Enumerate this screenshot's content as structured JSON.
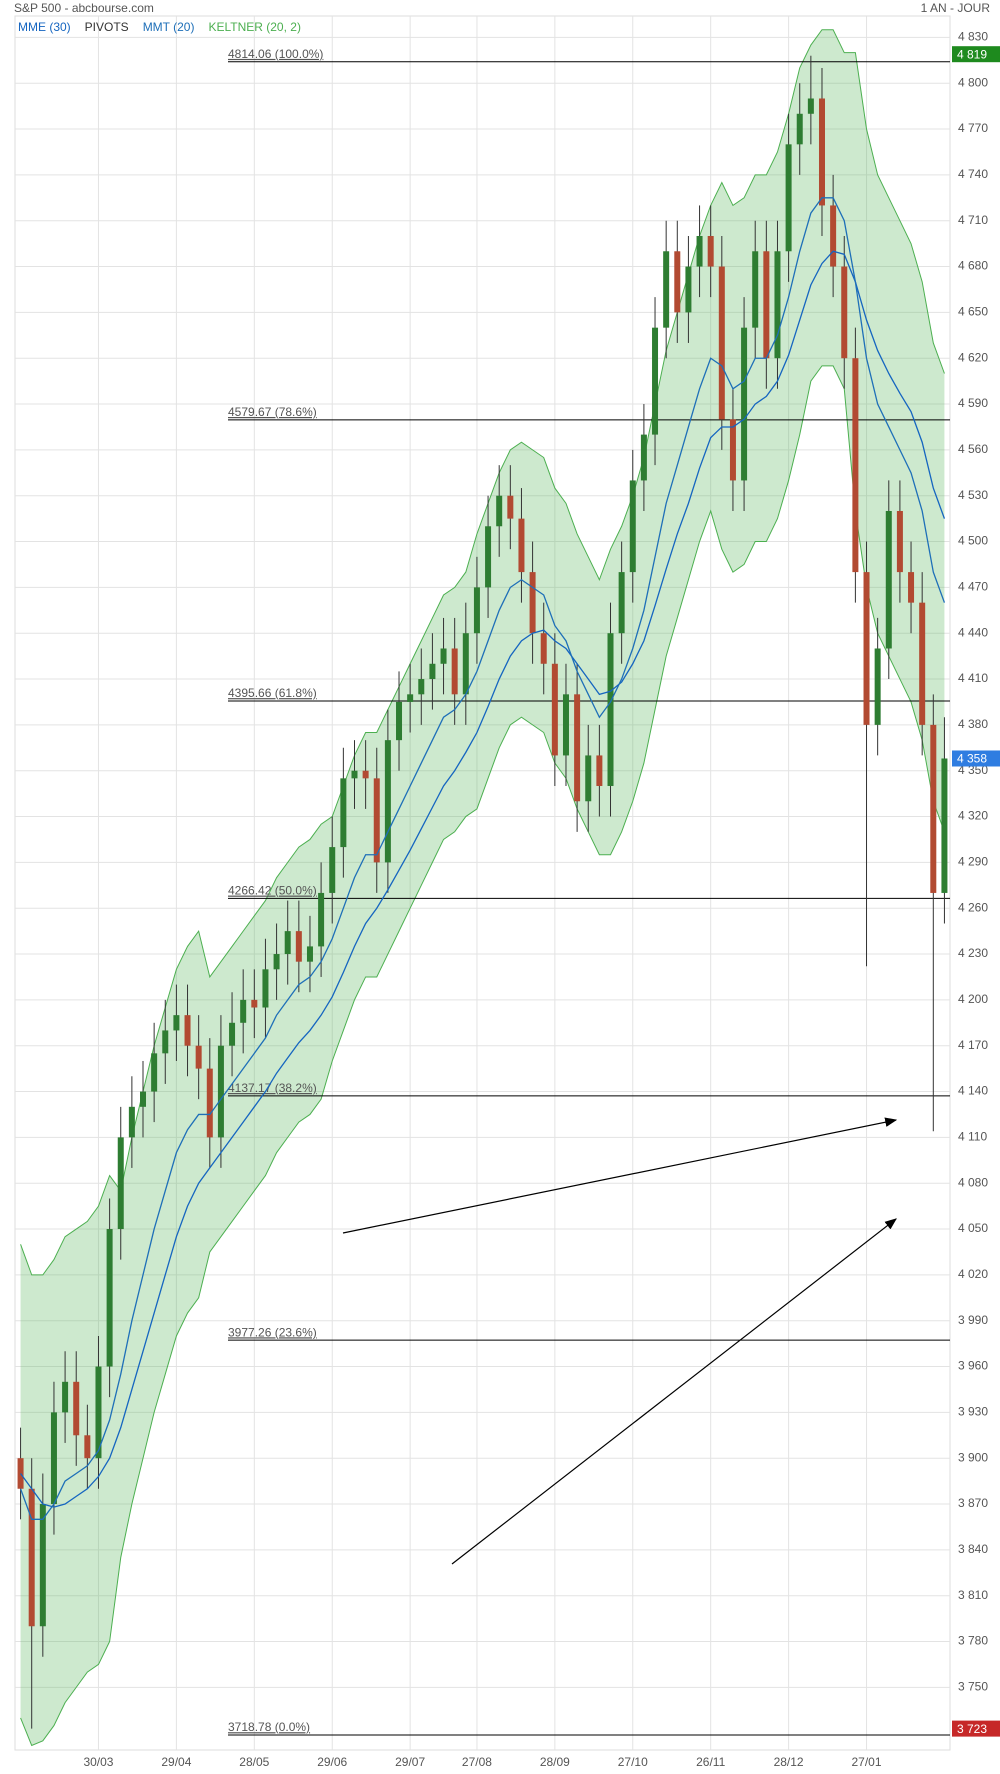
{
  "chart_data": {
    "type": "candlestick",
    "title": "S&P 500 - abcbourse.com",
    "subtitle": "1 AN - JOUR",
    "categories": [
      null,
      null,
      null,
      null,
      null,
      null,
      null,
      "30/03",
      null,
      null,
      null,
      null,
      null,
      null,
      "29/04",
      null,
      null,
      null,
      null,
      null,
      null,
      "28/05",
      null,
      null,
      null,
      null,
      null,
      null,
      "29/06",
      null,
      null,
      null,
      null,
      null,
      null,
      "29/07",
      null,
      null,
      null,
      null,
      null,
      "27/08",
      null,
      null,
      null,
      null,
      null,
      null,
      "28/09",
      null,
      null,
      null,
      null,
      null,
      null,
      "27/10",
      null,
      null,
      null,
      null,
      null,
      null,
      "26/11",
      null,
      null,
      null,
      null,
      null,
      null,
      "28/12",
      null,
      null,
      null,
      null,
      null,
      null,
      "27/01",
      null,
      null,
      null,
      null,
      null,
      null,
      null
    ],
    "candles": {
      "up_color": "#2e7d32",
      "down_color": "#b24a32",
      "open": [
        3900,
        3880,
        3790,
        3870,
        3930,
        3950,
        3915,
        3900,
        3960,
        4050,
        4110,
        4130,
        4140,
        4165,
        4180,
        4190,
        4170,
        4155,
        4110,
        4170,
        4185,
        4200,
        4195,
        4220,
        4230,
        4245,
        4225,
        4235,
        4270,
        4300,
        4345,
        4350,
        4345,
        4290,
        4370,
        4395,
        4400,
        4410,
        4420,
        4430,
        4400,
        4440,
        4470,
        4510,
        4530,
        4515,
        4480,
        4440,
        4420,
        4360,
        4400,
        4330,
        4360,
        4340,
        4440,
        4480,
        4540,
        4570,
        4640,
        4690,
        4650,
        4680,
        4700,
        4680,
        4580,
        4540,
        4640,
        4690,
        4620,
        4690,
        4760,
        4780,
        4790,
        4720,
        4680,
        4620,
        4480,
        4380,
        4430,
        4520,
        4480,
        4460,
        4380,
        4270
      ],
      "high": [
        3920,
        3900,
        3890,
        3950,
        3970,
        3970,
        3935,
        3980,
        4070,
        4130,
        4150,
        4160,
        4185,
        4200,
        4210,
        4210,
        4190,
        4175,
        4190,
        4205,
        4220,
        4220,
        4240,
        4250,
        4265,
        4265,
        4255,
        4290,
        4320,
        4365,
        4370,
        4370,
        4365,
        4390,
        4415,
        4420,
        4430,
        4440,
        4450,
        4450,
        4460,
        4490,
        4530,
        4550,
        4550,
        4535,
        4500,
        4460,
        4440,
        4420,
        4420,
        4380,
        4380,
        4460,
        4500,
        4560,
        4590,
        4660,
        4710,
        4710,
        4700,
        4720,
        4720,
        4700,
        4600,
        4660,
        4710,
        4710,
        4710,
        4780,
        4800,
        4818,
        4810,
        4740,
        4700,
        4640,
        4500,
        4450,
        4540,
        4540,
        4500,
        4480,
        4400,
        4385
      ],
      "low": [
        3860,
        3723,
        3770,
        3850,
        3910,
        3895,
        3880,
        3880,
        3940,
        4030,
        4090,
        4110,
        4120,
        4145,
        4160,
        4150,
        4135,
        4090,
        4090,
        4150,
        4165,
        4175,
        4175,
        4200,
        4210,
        4205,
        4205,
        4215,
        4250,
        4280,
        4325,
        4325,
        4270,
        4270,
        4350,
        4375,
        4380,
        4390,
        4400,
        4380,
        4380,
        4420,
        4450,
        4490,
        4495,
        4460,
        4420,
        4400,
        4340,
        4340,
        4310,
        4310,
        4320,
        4320,
        4420,
        4460,
        4520,
        4550,
        4620,
        4630,
        4630,
        4660,
        4660,
        4560,
        4520,
        4520,
        4620,
        4600,
        4600,
        4670,
        4740,
        4760,
        4700,
        4660,
        4600,
        4460,
        4222,
        4360,
        4410,
        4460,
        4440,
        4360,
        4114,
        4250
      ],
      "close": [
        3880,
        3790,
        3870,
        3930,
        3950,
        3915,
        3900,
        3960,
        4050,
        4110,
        4130,
        4140,
        4165,
        4180,
        4190,
        4170,
        4155,
        4110,
        4170,
        4185,
        4200,
        4195,
        4220,
        4230,
        4245,
        4225,
        4235,
        4270,
        4300,
        4345,
        4350,
        4345,
        4290,
        4370,
        4395,
        4400,
        4410,
        4420,
        4430,
        4400,
        4440,
        4470,
        4510,
        4530,
        4515,
        4480,
        4440,
        4420,
        4360,
        4400,
        4330,
        4360,
        4340,
        4440,
        4480,
        4540,
        4570,
        4640,
        4690,
        4650,
        4680,
        4700,
        4680,
        4580,
        4540,
        4640,
        4690,
        4620,
        4690,
        4760,
        4780,
        4790,
        4720,
        4680,
        4620,
        4480,
        4380,
        4430,
        4520,
        4480,
        4460,
        4380,
        4270,
        4358
      ]
    },
    "series": [
      {
        "name": "MME (30)",
        "color": "#1565c0",
        "values": [
          3890,
          3880,
          3870,
          3868,
          3870,
          3875,
          3880,
          3888,
          3900,
          3920,
          3945,
          3970,
          3995,
          4020,
          4045,
          4065,
          4080,
          4090,
          4100,
          4110,
          4120,
          4130,
          4140,
          4152,
          4162,
          4172,
          4180,
          4190,
          4202,
          4218,
          4235,
          4250,
          4260,
          4272,
          4285,
          4298,
          4312,
          4326,
          4340,
          4350,
          4362,
          4375,
          4392,
          4410,
          4425,
          4435,
          4440,
          4442,
          4435,
          4430,
          4420,
          4410,
          4400,
          4402,
          4408,
          4420,
          4435,
          4458,
          4482,
          4505,
          4525,
          4548,
          4568,
          4575,
          4575,
          4580,
          4590,
          4595,
          4605,
          4622,
          4645,
          4668,
          4682,
          4690,
          4688,
          4670,
          4645,
          4625,
          4610,
          4597,
          4585,
          4565,
          4535,
          4515
        ]
      },
      {
        "name": "PIVOTS",
        "color": "#333333"
      },
      {
        "name": "MMT (20)",
        "color": "#1e6fb8",
        "values": [
          3880,
          3860,
          3860,
          3870,
          3885,
          3890,
          3895,
          3905,
          3925,
          3955,
          3990,
          4020,
          4050,
          4075,
          4100,
          4115,
          4125,
          4125,
          4135,
          4145,
          4155,
          4165,
          4175,
          4190,
          4200,
          4210,
          4215,
          4225,
          4240,
          4260,
          4280,
          4295,
          4295,
          4310,
          4325,
          4340,
          4355,
          4370,
          4385,
          4390,
          4400,
          4415,
          4435,
          4455,
          4470,
          4475,
          4470,
          4465,
          4445,
          4435,
          4415,
          4400,
          4385,
          4395,
          4410,
          4430,
          4455,
          4490,
          4525,
          4550,
          4575,
          4600,
          4620,
          4615,
          4600,
          4605,
          4620,
          4620,
          4635,
          4660,
          4690,
          4715,
          4725,
          4725,
          4710,
          4670,
          4620,
          4590,
          4575,
          4560,
          4545,
          4520,
          4480,
          4460
        ]
      },
      {
        "name": "KELTNER (20, 2)",
        "color": "#4caf50",
        "upper": [
          4040,
          4020,
          4020,
          4030,
          4045,
          4050,
          4055,
          4065,
          4085,
          4075,
          4110,
          4140,
          4170,
          4195,
          4220,
          4235,
          4245,
          4215,
          4225,
          4235,
          4245,
          4255,
          4265,
          4280,
          4290,
          4300,
          4305,
          4315,
          4320,
          4340,
          4360,
          4375,
          4375,
          4390,
          4405,
          4420,
          4435,
          4450,
          4465,
          4470,
          4480,
          4505,
          4525,
          4545,
          4560,
          4565,
          4560,
          4555,
          4535,
          4525,
          4505,
          4490,
          4475,
          4495,
          4510,
          4530,
          4555,
          4590,
          4625,
          4650,
          4675,
          4700,
          4720,
          4735,
          4720,
          4725,
          4740,
          4740,
          4755,
          4780,
          4810,
          4825,
          4835,
          4835,
          4820,
          4820,
          4770,
          4740,
          4725,
          4710,
          4695,
          4670,
          4630,
          4610
        ],
        "lower": [
          3730,
          3712,
          3715,
          3725,
          3740,
          3750,
          3760,
          3765,
          3780,
          3835,
          3870,
          3900,
          3930,
          3955,
          3980,
          3995,
          4005,
          4035,
          4045,
          4055,
          4065,
          4075,
          4085,
          4100,
          4110,
          4120,
          4125,
          4135,
          4160,
          4180,
          4200,
          4215,
          4215,
          4230,
          4245,
          4260,
          4275,
          4290,
          4305,
          4310,
          4320,
          4325,
          4345,
          4365,
          4380,
          4385,
          4380,
          4375,
          4355,
          4345,
          4325,
          4310,
          4295,
          4295,
          4310,
          4330,
          4355,
          4390,
          4425,
          4450,
          4475,
          4500,
          4520,
          4495,
          4480,
          4485,
          4500,
          4500,
          4515,
          4540,
          4570,
          4605,
          4615,
          4615,
          4600,
          4520,
          4470,
          4440,
          4425,
          4410,
          4395,
          4370,
          4330,
          4310
        ]
      }
    ],
    "fibonacci": [
      {
        "value": 4814.06,
        "label": "4814.06 (100.0%)"
      },
      {
        "value": 4579.67,
        "label": "4579.67 (78.6%)"
      },
      {
        "value": 4395.66,
        "label": "4395.66 (61.8%)"
      },
      {
        "value": 4266.42,
        "label": "4266.42 (50.0%)"
      },
      {
        "value": 4137.17,
        "label": "4137.17 (38.2%)"
      },
      {
        "value": 3977.26,
        "label": "3977.26 (23.6%)"
      },
      {
        "value": 3718.78,
        "label": "3718.78 (0.0%)"
      }
    ],
    "price_tags": [
      {
        "value": 4819,
        "label": "4 819",
        "color": "#1e8a1e"
      },
      {
        "value": 4358,
        "label": "4 358",
        "color": "#2f7de1"
      },
      {
        "value": 3723,
        "label": "3 723",
        "color": "#c62828"
      }
    ],
    "ylim": [
      3709,
      4844
    ],
    "yticks": [
      {
        "value": 3750,
        "label": "3 750"
      },
      {
        "value": 3780,
        "label": "3 780"
      },
      {
        "value": 3810,
        "label": "3 810"
      },
      {
        "value": 3840,
        "label": "3 840"
      },
      {
        "value": 3870,
        "label": "3 870"
      },
      {
        "value": 3900,
        "label": "3 900"
      },
      {
        "value": 3930,
        "label": "3 930"
      },
      {
        "value": 3960,
        "label": "3 960"
      },
      {
        "value": 3990,
        "label": "3 990"
      },
      {
        "value": 4020,
        "label": "4 020"
      },
      {
        "value": 4050,
        "label": "4 050"
      },
      {
        "value": 4080,
        "label": "4 080"
      },
      {
        "value": 4110,
        "label": "4 110"
      },
      {
        "value": 4140,
        "label": "4 140"
      },
      {
        "value": 4170,
        "label": "4 170"
      },
      {
        "value": 4200,
        "label": "4 200"
      },
      {
        "value": 4230,
        "label": "4 230"
      },
      {
        "value": 4260,
        "label": "4 260"
      },
      {
        "value": 4290,
        "label": "4 290"
      },
      {
        "value": 4320,
        "label": "4 320"
      },
      {
        "value": 4350,
        "label": "4 350"
      },
      {
        "value": 4380,
        "label": "4 380"
      },
      {
        "value": 4410,
        "label": "4 410"
      },
      {
        "value": 4440,
        "label": "4 440"
      },
      {
        "value": 4470,
        "label": "4 470"
      },
      {
        "value": 4500,
        "label": "4 500"
      },
      {
        "value": 4530,
        "label": "4 530"
      },
      {
        "value": 4560,
        "label": "4 560"
      },
      {
        "value": 4590,
        "label": "4 590"
      },
      {
        "value": 4620,
        "label": "4 620"
      },
      {
        "value": 4650,
        "label": "4 650"
      },
      {
        "value": 4680,
        "label": "4 680"
      },
      {
        "value": 4710,
        "label": "4 710"
      },
      {
        "value": 4740,
        "label": "4 740"
      },
      {
        "value": 4770,
        "label": "4 770"
      },
      {
        "value": 4800,
        "label": "4 800"
      },
      {
        "value": 4830,
        "label": "4 830"
      }
    ],
    "grid": true
  }
}
